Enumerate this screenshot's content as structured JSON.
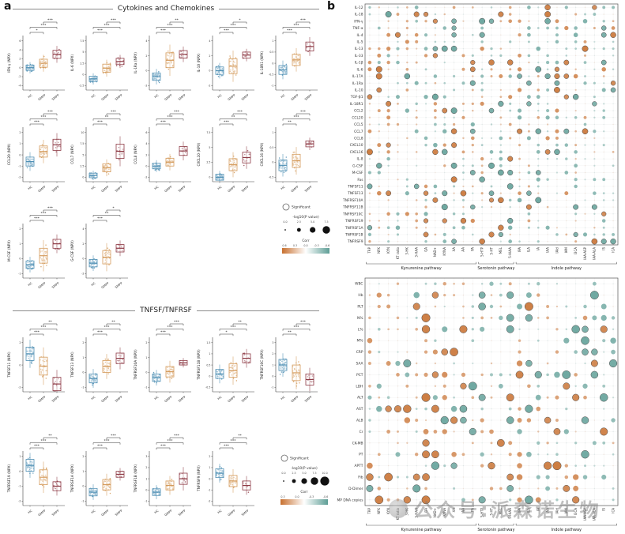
{
  "figure": {
    "panel_a_label": "a",
    "panel_b_label": "b"
  },
  "watermark": {
    "text": "公众号:派森诺生物"
  },
  "legend": {
    "significant_label": "Significant",
    "size_title": "-log10(P value)",
    "corr_title": "Corr",
    "top": {
      "size_ticks": [
        "0.0",
        "2.5",
        "5.0",
        "7.5"
      ],
      "corr_ticks": [
        "0.6",
        "0.3",
        "0.0",
        "-0.3",
        "-0.6"
      ]
    },
    "bottom": {
      "size_ticks": [
        "0.0",
        "2.5",
        "5.0",
        "7.5",
        "10.0"
      ],
      "corr_ticks": [
        "0.3",
        "0.0",
        "-0.3",
        "-0.6"
      ]
    },
    "corr_colors": {
      "positive": "#c8702f",
      "mid": "#ffffff",
      "negative": "#5e9e96"
    }
  },
  "chart_data": [
    {
      "type": "box",
      "panel": "a",
      "unit": "NPX",
      "categories": [
        "HC",
        "GMPP",
        "SMPP"
      ],
      "colors": {
        "HC": "#4e8fb4",
        "GMPP": "#d49a5a",
        "SMPP": "#8e3b46"
      },
      "sections": [
        {
          "title": "Cytokines and Chemokines",
          "rows": [
            [
              {
                "name": "IFN-γ",
                "yticks": [
                  -4,
                  -2,
                  0,
                  2,
                  4,
                  6
                ],
                "med": [
                  0,
                  1,
                  3
                ],
                "iqr": [
                  0.6,
                  0.9,
                  0.9
                ],
                "sig": [
                  "*",
                  "***",
                  "***"
                ]
              },
              {
                "name": "IL-6",
                "yticks": [
                  -2.5,
                  0,
                  2.5,
                  5,
                  7.5
                ],
                "med": [
                  -1,
                  1.4,
                  2.9
                ],
                "iqr": [
                  0.6,
                  0.9,
                  0.7
                ],
                "sig": [
                  "***",
                  "***",
                  "***"
                ]
              },
              {
                "name": "IL-1Ra",
                "yticks": [
                  -2,
                  0,
                  2,
                  4
                ],
                "med": [
                  -0.8,
                  1.4,
                  2.2
                ],
                "iqr": [
                  0.5,
                  1,
                  0.5
                ],
                "sig": [
                  "***",
                  "***",
                  "**"
                ]
              },
              {
                "name": "IL-10",
                "yticks": [
                  -2,
                  0,
                  2,
                  4
                ],
                "med": [
                  0,
                  0.6,
                  2.1
                ],
                "iqr": [
                  0.5,
                  1,
                  0.4
                ],
                "sig": [
                  "***",
                  "***",
                  "*"
                ]
              },
              {
                "name": "IL-18R1",
                "yticks": [
                  -1,
                  -0.5,
                  0,
                  0.5,
                  1
                ],
                "med": [
                  -0.3,
                  0.15,
                  0.75
                ],
                "iqr": [
                  0.2,
                  0.25,
                  0.2
                ],
                "sig": [
                  "***",
                  "***",
                  "***"
                ]
              }
            ],
            [
              {
                "name": "CCL20",
                "yticks": [
                  -2,
                  -1,
                  0,
                  1,
                  2
                ],
                "med": [
                  -0.6,
                  0.3,
                  0.9
                ],
                "iqr": [
                  0.4,
                  0.5,
                  0.5
                ],
                "sig": [
                  "***",
                  "***",
                  "***"
                ]
              },
              {
                "name": "CCL7",
                "yticks": [
                  0,
                  2.5,
                  5,
                  7.5,
                  10
                ],
                "med": [
                  0.4,
                  2.1,
                  5.8
                ],
                "iqr": [
                  0.5,
                  0.9,
                  1.6
                ],
                "sig": [
                  "***",
                  "**",
                  "***"
                ]
              },
              {
                "name": "CCL8",
                "yticks": [
                  -2,
                  0,
                  2,
                  4,
                  6
                ],
                "med": [
                  0,
                  0.7,
                  2.7
                ],
                "iqr": [
                  0.5,
                  0.7,
                  0.8
                ],
                "sig": [
                  "***",
                  "***",
                  "***"
                ]
              },
              {
                "name": "CXCL10",
                "yticks": [
                  0,
                  2.5,
                  5,
                  7.5
                ],
                "med": [
                  0,
                  2.1,
                  3.3
                ],
                "iqr": [
                  0.5,
                  1,
                  0.9
                ],
                "sig": [
                  "***",
                  "**",
                  "***"
                ]
              },
              {
                "name": "CXCL16",
                "yticks": [
                  -0.5,
                  0,
                  0.5,
                  1
                ],
                "med": [
                  -0.1,
                  0.05,
                  0.62
                ],
                "iqr": [
                  0.18,
                  0.22,
                  0.1
                ],
                "sig": [
                  "**",
                  "***",
                  "***"
                ]
              }
            ],
            [
              {
                "name": "M-CSF",
                "yticks": [
                  -1,
                  0,
                  1,
                  2
                ],
                "med": [
                  -0.4,
                  0.2,
                  1
                ],
                "iqr": [
                  0.25,
                  0.5,
                  0.3
                ],
                "sig": [
                  "***",
                  "***",
                  "***"
                ]
              },
              {
                "name": "G-CSF",
                "yticks": [
                  -2,
                  0,
                  2,
                  4
                ],
                "med": [
                  -0.6,
                  0.2,
                  1.4
                ],
                "iqr": [
                  0.5,
                  0.9,
                  0.5
                ],
                "sig": [
                  "***",
                  "**",
                  "*"
                ]
              }
            ]
          ]
        },
        {
          "title": "TNFSF/TNFRSF",
          "rows": [
            [
              {
                "name": "TNFSF11",
                "yticks": [
                  -2,
                  0,
                  2
                ],
                "med": [
                  1,
                  -0.1,
                  -1.7
                ],
                "iqr": [
                  0.6,
                  0.8,
                  0.6
                ],
                "sig": [
                  "***",
                  "***",
                  "**"
                ]
              },
              {
                "name": "TNFSF13",
                "yticks": [
                  -1,
                  0,
                  1,
                  2
                ],
                "med": [
                  -0.4,
                  0.4,
                  0.95
                ],
                "iqr": [
                  0.3,
                  0.4,
                  0.35
                ],
                "sig": [
                  "***",
                  "***",
                  "**"
                ]
              },
              {
                "name": "TNFRSF10A",
                "yticks": [
                  -1,
                  0,
                  1,
                  2
                ],
                "med": [
                  -0.35,
                  0.05,
                  0.65
                ],
                "iqr": [
                  0.25,
                  0.35,
                  0.15
                ],
                "sig": [
                  "***",
                  "***",
                  "***"
                ]
              },
              {
                "name": "TNFRSF11B",
                "yticks": [
                  -0.5,
                  0,
                  0.5,
                  1,
                  1.5
                ],
                "med": [
                  0.1,
                  0.25,
                  0.8
                ],
                "iqr": [
                  0.2,
                  0.3,
                  0.2
                ],
                "sig": [
                  "*",
                  "***",
                  "**"
                ]
              },
              {
                "name": "TNFRSF10C",
                "yticks": [
                  -1,
                  0,
                  1,
                  2,
                  3
                ],
                "med": [
                  1,
                  0.3,
                  -0.3
                ],
                "iqr": [
                  0.5,
                  0.7,
                  0.5
                ],
                "sig": [
                  "**",
                  "***",
                  "***"
                ]
              }
            ],
            [
              {
                "name": "TNFRSF19",
                "yticks": [
                  -2,
                  -1,
                  0,
                  1
                ],
                "med": [
                  0.4,
                  -0.4,
                  -1
                ],
                "iqr": [
                  0.4,
                  0.5,
                  0.3
                ],
                "sig": [
                  "***",
                  "***",
                  "**"
                ]
              },
              {
                "name": "TNFRSF1A",
                "yticks": [
                  -1,
                  0,
                  1,
                  2
                ],
                "med": [
                  -0.4,
                  0.1,
                  0.8
                ],
                "iqr": [
                  0.25,
                  0.35,
                  0.2
                ],
                "sig": [
                  "***",
                  "***",
                  "***"
                ]
              },
              {
                "name": "TNFRSF1B",
                "yticks": [
                  -1,
                  0,
                  1,
                  2,
                  3
                ],
                "med": [
                  -0.2,
                  0.4,
                  1
                ],
                "iqr": [
                  0.3,
                  0.4,
                  0.5
                ],
                "sig": [
                  "***",
                  "***",
                  "***"
                ]
              },
              {
                "name": "TNFRSF9",
                "yticks": [
                  -2,
                  -1,
                  0,
                  1,
                  2
                ],
                "med": [
                  0.5,
                  -0.2,
                  -0.6
                ],
                "iqr": [
                  0.4,
                  0.5,
                  0.4
                ],
                "sig": [
                  "***",
                  "***",
                  "**"
                ]
              }
            ]
          ]
        }
      ]
    },
    {
      "type": "bubble",
      "panel": "b-top",
      "rows": [
        "IL-12",
        "IL-18",
        "IFN-γ",
        "TNF-α",
        "IL-4",
        "IL-5",
        "IL-13",
        "IL-33",
        "IL-1β",
        "IL-6",
        "IL-17A",
        "IL-1Ra",
        "IL-10",
        "TGF-β1",
        "IL-18R1",
        "CCL2",
        "CCL20",
        "CCL5",
        "CCL7",
        "CCL8",
        "CXCL10",
        "CXCL16",
        "IL-8",
        "G-CSF",
        "M-CSF",
        "Fas",
        "TNFSF11",
        "TNFSF13",
        "TNFRSF10A",
        "TNFRSF11B",
        "TNFRSF10C",
        "TNFRSF19",
        "TNFRSF1A",
        "TNFRSF1B",
        "TNFRSF9"
      ],
      "columns": [
        "TRP",
        "NFK",
        "KYN",
        "KT ratio",
        "3-HK",
        "3-HAA",
        "QA",
        "NAD+",
        "KYNA",
        "XA",
        "AA",
        "PA",
        "5-HTP",
        "5-HT",
        "MEL",
        "5-HIAA",
        "IPA",
        "ILA",
        "IA",
        "IAA",
        "IAld",
        "IAM",
        "I3CA",
        "IAA-ASP",
        "IAA-ALA",
        "IS",
        "ICA"
      ],
      "column_groups": [
        {
          "label": "Kynurenine pathway",
          "from": 0,
          "to": 11
        },
        {
          "label": "Serotonin pathway",
          "from": 12,
          "to": 15
        },
        {
          "label": "Indole pathway",
          "from": 16,
          "to": 26
        }
      ]
    },
    {
      "type": "bubble",
      "panel": "b-bottom",
      "rows": [
        "WBC",
        "Hb",
        "PLT",
        "N%",
        "L%",
        "M%",
        "CRP",
        "SAA",
        "PCT",
        "LDH",
        "ALT",
        "AST",
        "ALB",
        "Cr",
        "CK-MB",
        "PT",
        "APTT",
        "Fib",
        "D-Dimer",
        "MP DNA copies"
      ],
      "columns": [
        "TRP",
        "NFK",
        "KYN",
        "KT ratio",
        "3-HK",
        "3-HAA",
        "QA",
        "NAD+",
        "KYNA",
        "XA",
        "AA",
        "PA",
        "5-HTP",
        "5-HT",
        "MEL",
        "5-HIAA",
        "IPA",
        "ILA",
        "IA",
        "IAA",
        "IAld",
        "IAM",
        "I3CA",
        "IAA-ASP",
        "IAA-ALA",
        "IS",
        "ICA"
      ],
      "column_groups": [
        {
          "label": "Kynurenine pathway",
          "from": 0,
          "to": 11
        },
        {
          "label": "Serotonin pathway",
          "from": 12,
          "to": 15
        },
        {
          "label": "Indole pathway",
          "from": 16,
          "to": 26
        }
      ]
    }
  ]
}
